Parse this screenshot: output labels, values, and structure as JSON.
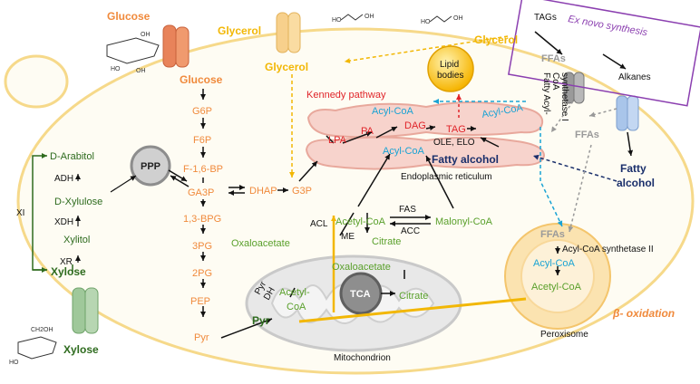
{
  "inputs": {
    "glucose_top": "Glucose",
    "glycerol_top": "Glycerol",
    "glycerol_inner": "Glycerol",
    "glycerol_right": "Glycerol",
    "xylose_bottom": "Xylose",
    "tags": "TAGs",
    "ffas_top": "FFAs",
    "alkanes": "Alkanes",
    "ex_novo": "Ex novo synthesis"
  },
  "glycolysis": [
    "Glucose",
    "G6P",
    "F6P",
    "F-1,6-BP",
    "GA3P",
    "1,3-BPG",
    "3PG",
    "2PG",
    "PEP",
    "Pyr"
  ],
  "ppp": "PPP",
  "dhap": "DHAP",
  "g3p": "G3P",
  "xylose_path": {
    "arabitol": "D-Arabitol",
    "adh": "ADH",
    "xylulose": "D-Xylulose",
    "xdh": "XDH",
    "xylitol": "Xylitol",
    "xr": "XR",
    "xylose": "Xylose",
    "xi": "XI"
  },
  "er": {
    "kennedy": "Kennedy pathway",
    "acyl_coa_1": "Acyl-CoA",
    "acyl_coa_2": "Acyl-CoA",
    "acyl_coa_3": "Acyl-CoA",
    "lpa": "LPA",
    "pa": "PA",
    "dag": "DAG",
    "tag": "TAG",
    "ole_elo": "OLE, ELO",
    "fatty_alcohol": "Fatty alcohol",
    "label": "Endoplasmic reticulum"
  },
  "lipid_bodies": [
    "Lipid",
    "bodies"
  ],
  "fatty_acyl_enzyme": [
    "Fatty Acyl-",
    "CoA",
    "synthetase I"
  ],
  "ffas_right": "FFAs",
  "fatty_alcohol_out": [
    "Fatty",
    "alcohol"
  ],
  "cytosol": {
    "acl": "ACL",
    "acetyl_coa": "Acetyl-CoA",
    "fas": "FAS",
    "acc": "ACC",
    "malonyl_coa": "Malonyl-CoA",
    "me": "ME",
    "citrate": "Citrate",
    "oxaloacetate": "Oxaloacetate"
  },
  "mito": {
    "pyr": "Pyr",
    "pyr_dh": [
      "Pyr",
      "DH"
    ],
    "acetyl_coa": [
      "Acetyl-",
      "CoA"
    ],
    "tca": "TCA",
    "oxaloacetate": "Oxaloacetate",
    "citrate": "Citrate",
    "label": "Mitochondrion"
  },
  "peroxisome": {
    "ffas": "FFAs",
    "enzyme": "Acyl-CoA synthetase II",
    "acyl_coa": "Acyl-CoA",
    "acetyl_coa": "Acetyl-CoA",
    "label": "Peroxisome",
    "beta_ox": "β- oxidation"
  }
}
